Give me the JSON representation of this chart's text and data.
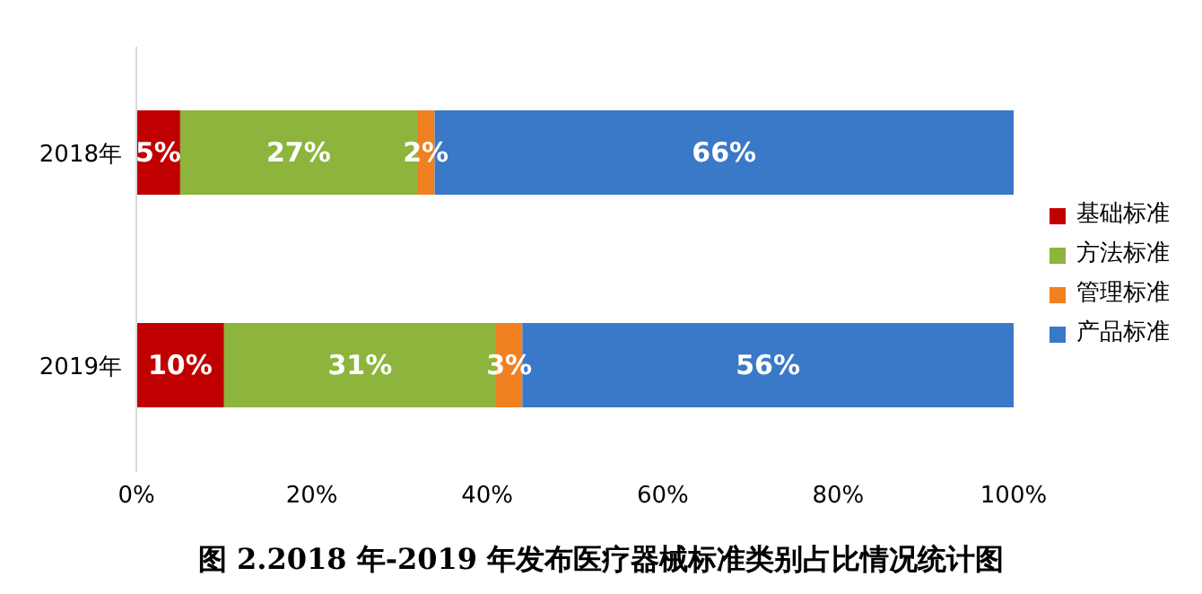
{
  "chart_data": {
    "type": "bar",
    "orientation": "horizontal",
    "stacked": true,
    "title": "图 2.2018 年-2019 年发布医疗器械标准类别占比情况统计图",
    "categories": [
      "2018年",
      "2019年"
    ],
    "series": [
      {
        "name": "基础标准",
        "color": "#c00000",
        "values": [
          5,
          10
        ],
        "value_labels": [
          "5%",
          "10%"
        ]
      },
      {
        "name": "方法标准",
        "color": "#8db43c",
        "values": [
          27,
          31
        ],
        "value_labels": [
          "27%",
          "31%"
        ]
      },
      {
        "name": "管理标准",
        "color": "#f08020",
        "values": [
          2,
          3
        ],
        "value_labels": [
          "2%",
          "3%"
        ]
      },
      {
        "name": "产品标准",
        "color": "#3a78c8",
        "values": [
          66,
          56
        ],
        "value_labels": [
          "66%",
          "56%"
        ]
      }
    ],
    "xlim": [
      0,
      100
    ],
    "xticks": [
      {
        "value": 0,
        "label": "0%"
      },
      {
        "value": 20,
        "label": "20%"
      },
      {
        "value": 40,
        "label": "40%"
      },
      {
        "value": 60,
        "label": "60%"
      },
      {
        "value": 80,
        "label": "80%"
      },
      {
        "value": 100,
        "label": "100%"
      }
    ],
    "legend": "right"
  }
}
